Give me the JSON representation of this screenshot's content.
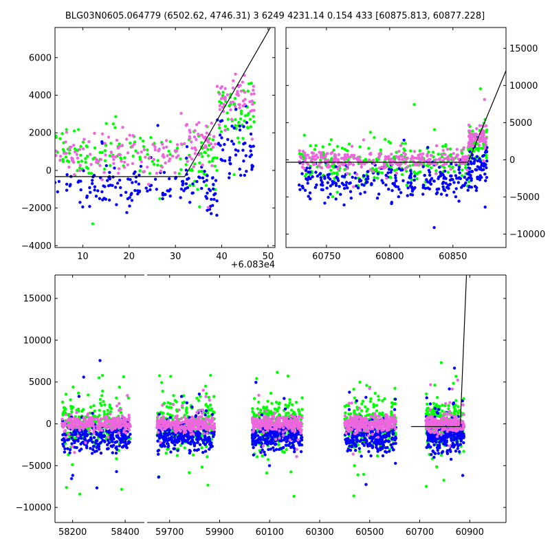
{
  "title": "BLG03N0605.064779 (6502.62, 4746.31)   3 6249 4231.14 0.154 433 [60875.813, 60877.228]",
  "colors": {
    "blue": "#0000ff",
    "green": "#00ff00",
    "magenta": "#ee66dd",
    "model": "#000000"
  },
  "chart_data": [
    {
      "type": "scatter",
      "panel": "top-left zoom",
      "x_offset_label": "+6.083e4",
      "xlim": [
        60834,
        60881.5
      ],
      "ylim": [
        -4100,
        7600
      ],
      "x_ticks": [
        {
          "v": 60840,
          "label": "10"
        },
        {
          "v": 60850,
          "label": "20"
        },
        {
          "v": 60860,
          "label": "30"
        },
        {
          "v": 60870,
          "label": "40"
        },
        {
          "v": 60880,
          "label": "50"
        }
      ],
      "y_ticks": [
        {
          "v": -4000,
          "label": "−4000"
        },
        {
          "v": -2000,
          "label": "−2000"
        },
        {
          "v": 0,
          "label": "0"
        },
        {
          "v": 2000,
          "label": "2000"
        },
        {
          "v": 4000,
          "label": "4000"
        },
        {
          "v": 6000,
          "label": "6000"
        }
      ],
      "y_axis_side": "left",
      "model_line": [
        [
          60834,
          -330
        ],
        [
          60862,
          -330
        ],
        [
          60880.5,
          7600
        ]
      ],
      "clusters": [
        {
          "x": [
            60834,
            60862
          ],
          "blue": [
            -3000,
            1200
          ],
          "green": [
            -1500,
            3500
          ],
          "magenta": [
            -1200,
            3000
          ]
        },
        {
          "x": [
            60862,
            60869
          ],
          "blue": [
            -4000,
            2500
          ],
          "green": [
            -2500,
            3500
          ],
          "magenta": [
            -500,
            3500
          ]
        },
        {
          "x": [
            60869,
            60877
          ],
          "blue": [
            -2500,
            5000
          ],
          "green": [
            0,
            6000
          ],
          "magenta": [
            1500,
            6500
          ]
        }
      ]
    },
    {
      "type": "scatter",
      "panel": "top-right",
      "xlim": [
        60718,
        60892
      ],
      "ylim": [
        -11800,
        17800
      ],
      "x_ticks": [
        {
          "v": 60750,
          "label": "60750"
        },
        {
          "v": 60800,
          "label": "60800"
        },
        {
          "v": 60850,
          "label": "60850"
        }
      ],
      "y_ticks": [
        {
          "v": -10000,
          "label": "−10000"
        },
        {
          "v": -5000,
          "label": "−5000"
        },
        {
          "v": 0,
          "label": "0"
        },
        {
          "v": 5000,
          "label": "5000"
        },
        {
          "v": 10000,
          "label": "10000"
        },
        {
          "v": 15000,
          "label": "15000"
        }
      ],
      "y_axis_side": "right",
      "model_line": [
        [
          60718,
          -330
        ],
        [
          60862,
          -330
        ],
        [
          60892,
          12000
        ]
      ],
      "clusters": [
        {
          "x": [
            60728,
            60862
          ],
          "blue": [
            -7000,
            1500
          ],
          "green": [
            -5000,
            4000
          ],
          "magenta": [
            -2000,
            2000
          ]
        },
        {
          "x": [
            60862,
            60877
          ],
          "blue": [
            -6000,
            4000
          ],
          "green": [
            -3000,
            8000
          ],
          "magenta": [
            0,
            6000
          ]
        }
      ]
    },
    {
      "type": "scatter",
      "panel": "bottom full light curve (broken x axis)",
      "ylim": [
        -11800,
        17800
      ],
      "y_ticks": [
        {
          "v": -10000,
          "label": "−10000"
        },
        {
          "v": -5000,
          "label": "−5000"
        },
        {
          "v": 0,
          "label": "0"
        },
        {
          "v": 5000,
          "label": "5000"
        },
        {
          "v": 10000,
          "label": "10000"
        },
        {
          "v": 15000,
          "label": "15000"
        }
      ],
      "y_axis_side": "left",
      "x_ticks": [
        {
          "v": 58200,
          "label": "58200"
        },
        {
          "v": 58400,
          "label": "58400"
        },
        {
          "v": 59700,
          "label": "59700"
        },
        {
          "v": 59900,
          "label": "59900"
        },
        {
          "v": 60100,
          "label": "60100"
        },
        {
          "v": 60300,
          "label": "60300"
        },
        {
          "v": 60500,
          "label": "60500"
        },
        {
          "v": 60700,
          "label": "60700"
        },
        {
          "v": 60900,
          "label": "60900"
        }
      ],
      "segments": [
        {
          "xlim": [
            58133,
            58473
          ]
        },
        {
          "xlim": [
            59610,
            61045
          ]
        }
      ],
      "model_line": [
        [
          60665,
          -330
        ],
        [
          60862,
          -330
        ],
        [
          60887,
          17800
        ]
      ],
      "seasons": [
        {
          "x": [
            58160,
            58420
          ]
        },
        {
          "x": [
            59650,
            59880
          ]
        },
        {
          "x": [
            60030,
            60230
          ]
        },
        {
          "x": [
            60400,
            60605
          ]
        },
        {
          "x": [
            60725,
            60877
          ]
        }
      ]
    }
  ]
}
